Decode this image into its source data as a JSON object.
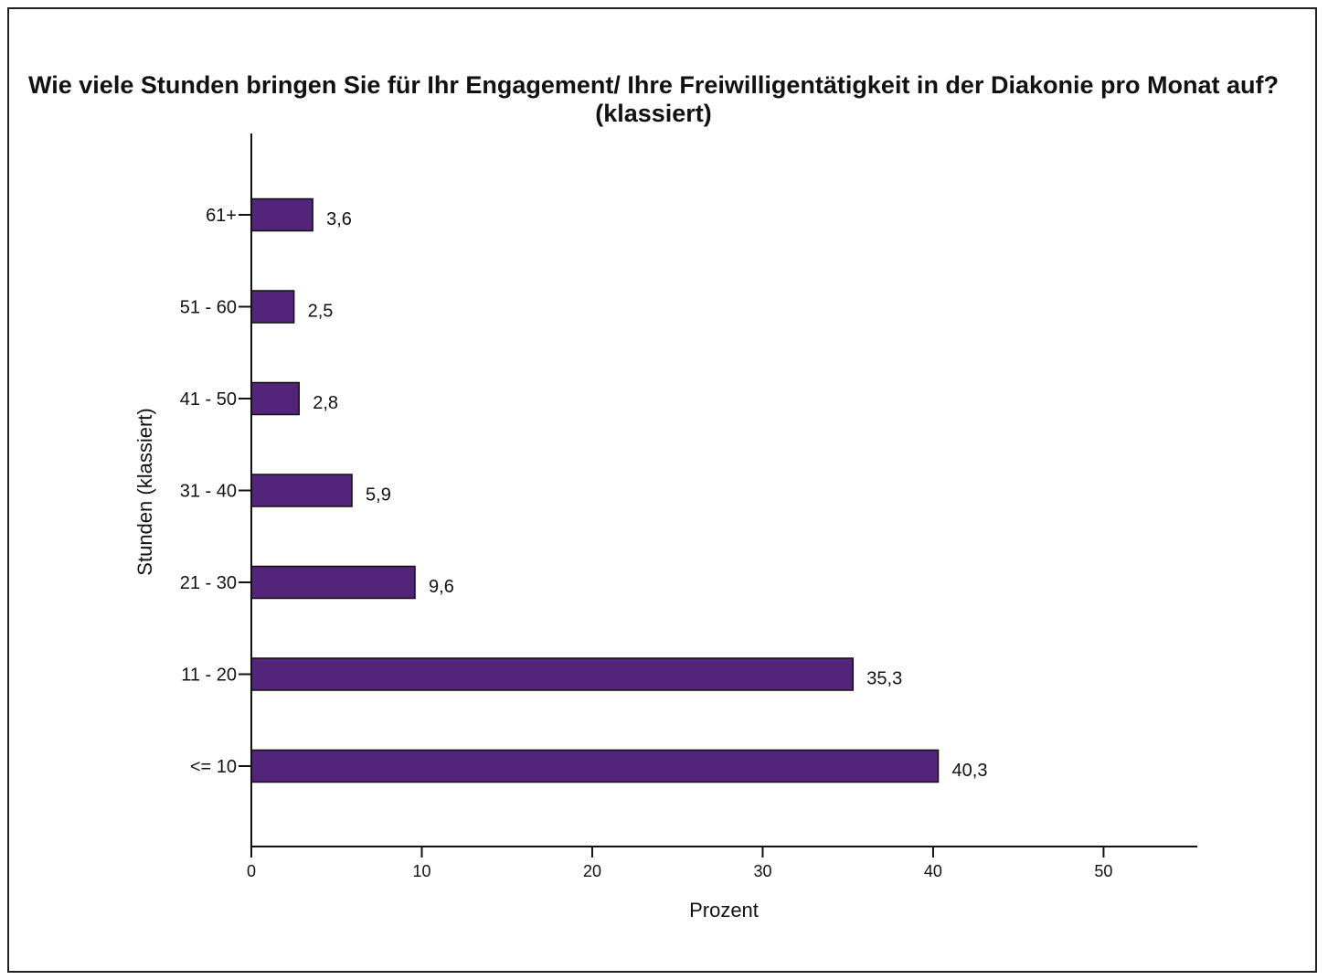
{
  "chart_data": {
    "type": "bar",
    "orientation": "horizontal",
    "title": "Wie viele Stunden bringen Sie für Ihr Engagement/ Ihre Freiwilligentätigkeit in der Diakonie pro Monat auf? (klassiert)",
    "xlabel": "Prozent",
    "ylabel": "Stunden (klassiert)",
    "categories": [
      "61+",
      "51 - 60",
      "41 - 50",
      "31 - 40",
      "21 - 30",
      "11 - 20",
      "<= 10"
    ],
    "values": [
      3.6,
      2.5,
      2.8,
      5.9,
      9.6,
      35.3,
      40.3
    ],
    "value_labels": [
      "3,6",
      "2,5",
      "2,8",
      "5,9",
      "9,6",
      "35,3",
      "40,3"
    ],
    "xlim": [
      0,
      55.5
    ],
    "xticks": [
      0,
      10,
      20,
      30,
      40,
      50
    ],
    "grid": false,
    "bar_color": "#52247a",
    "bar_edge_color": "#111111"
  }
}
